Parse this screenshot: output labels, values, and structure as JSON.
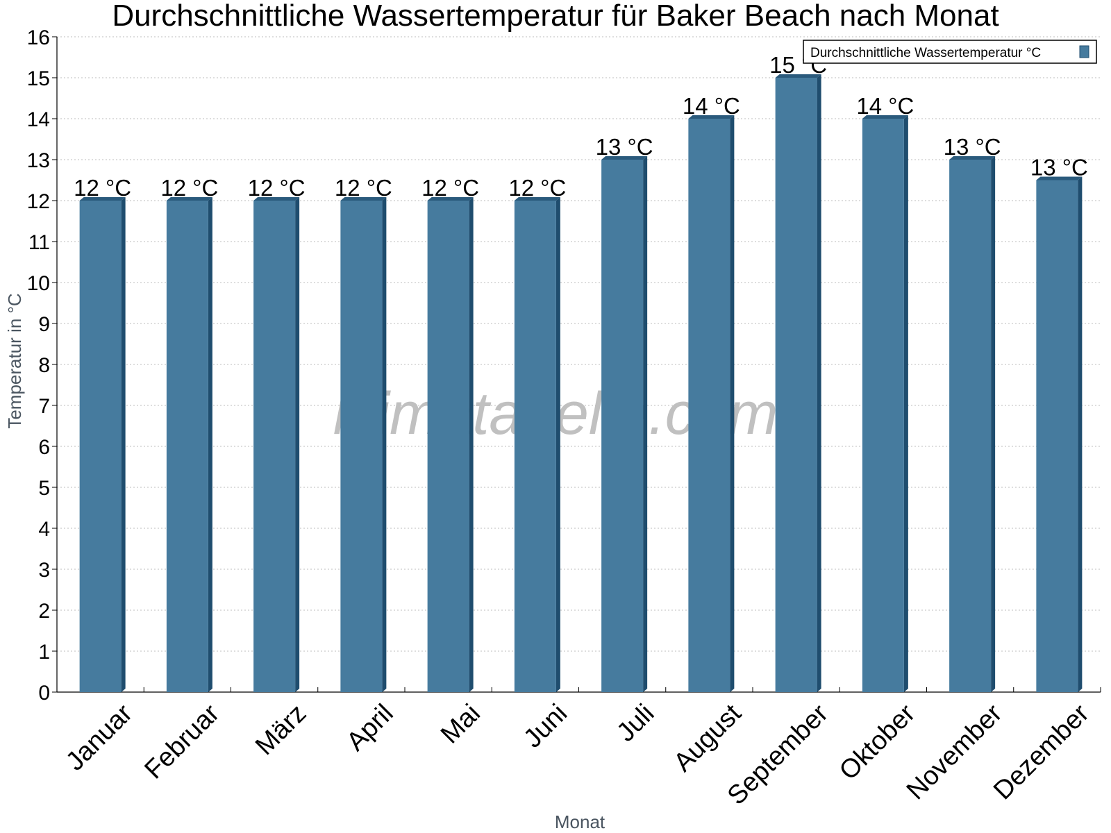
{
  "chart_data": {
    "type": "bar",
    "title": "Durchschnittliche Wassertemperatur für Baker Beach nach Monat",
    "xlabel": "Monat",
    "ylabel": "Temperatur in °C",
    "categories": [
      "Januar",
      "Februar",
      "März",
      "April",
      "Mai",
      "Juni",
      "Juli",
      "August",
      "September",
      "Oktober",
      "November",
      "Dezember"
    ],
    "series": [
      {
        "name": "Durchschnittliche Wassertemperatur °C",
        "values": [
          12,
          12,
          12,
          12,
          12,
          12,
          13,
          14,
          15,
          14,
          13,
          12.5
        ],
        "labels": [
          "12 °C",
          "12 °C",
          "12 °C",
          "12 °C",
          "12 °C",
          "12 °C",
          "13 °C",
          "14 °C",
          "15 °C",
          "14 °C",
          "13 °C",
          "13 °C"
        ]
      }
    ],
    "ylim": [
      0,
      16
    ],
    "yticks": [
      0,
      1,
      2,
      3,
      4,
      5,
      6,
      7,
      8,
      9,
      10,
      11,
      12,
      13,
      14,
      15,
      16
    ],
    "grid": true,
    "legend_position": "top-right",
    "colors": {
      "bar_front": "#467b9e",
      "bar_side": "#1f4d6e",
      "bar_top": "#2a5a7c"
    }
  },
  "watermark": "klimatabelle.com"
}
